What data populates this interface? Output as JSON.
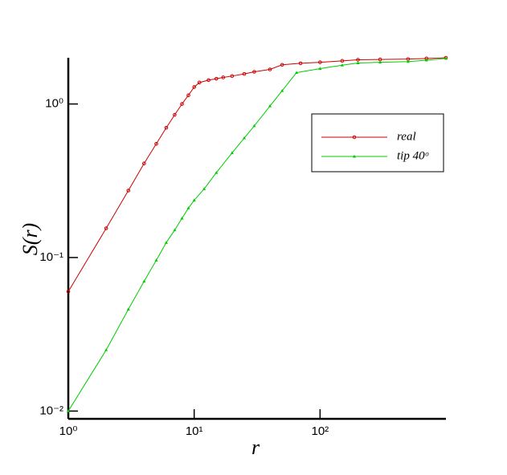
{
  "chart_data": {
    "type": "line",
    "x_label": "r",
    "y_label": "S(r)",
    "xscale": "log",
    "yscale": "log",
    "xlim": [
      1,
      1000
    ],
    "ylim": [
      0.0089,
      2
    ],
    "xticks": [
      {
        "value": 1,
        "label": "10⁰"
      },
      {
        "value": 10,
        "label": "10¹"
      },
      {
        "value": 100,
        "label": "10²"
      }
    ],
    "yticks": [
      {
        "value": 0.01,
        "label": "10⁻²"
      },
      {
        "value": 0.1,
        "label": "10⁻¹"
      },
      {
        "value": 1,
        "label": "10⁰"
      }
    ],
    "legend": "upper right",
    "series": [
      {
        "name": "real",
        "color": "#cc0000",
        "marker": "circle",
        "x": [
          1,
          2,
          3,
          4,
          5,
          6,
          7,
          8,
          9,
          10,
          11,
          13,
          15,
          17,
          20,
          25,
          30,
          40,
          50,
          70,
          100,
          150,
          200,
          300,
          500,
          700,
          1000
        ],
        "values": [
          0.06,
          0.155,
          0.273,
          0.41,
          0.55,
          0.7,
          0.85,
          1.0,
          1.14,
          1.29,
          1.38,
          1.43,
          1.46,
          1.49,
          1.52,
          1.57,
          1.62,
          1.68,
          1.8,
          1.84,
          1.87,
          1.91,
          1.94,
          1.95,
          1.96,
          1.98,
          2.0
        ]
      },
      {
        "name": "tip 40ᵒ",
        "color": "#00cc00",
        "marker": "triangle",
        "x": [
          1,
          2,
          3,
          4,
          5,
          6,
          7,
          8,
          9,
          10,
          12,
          15,
          20,
          25,
          30,
          40,
          50,
          65,
          100,
          150,
          200,
          300,
          500,
          700,
          1000
        ],
        "values": [
          0.01,
          0.025,
          0.046,
          0.07,
          0.096,
          0.125,
          0.151,
          0.18,
          0.21,
          0.236,
          0.28,
          0.357,
          0.48,
          0.6,
          0.72,
          0.97,
          1.22,
          1.6,
          1.7,
          1.79,
          1.85,
          1.87,
          1.89,
          1.93,
          1.98
        ]
      }
    ]
  }
}
